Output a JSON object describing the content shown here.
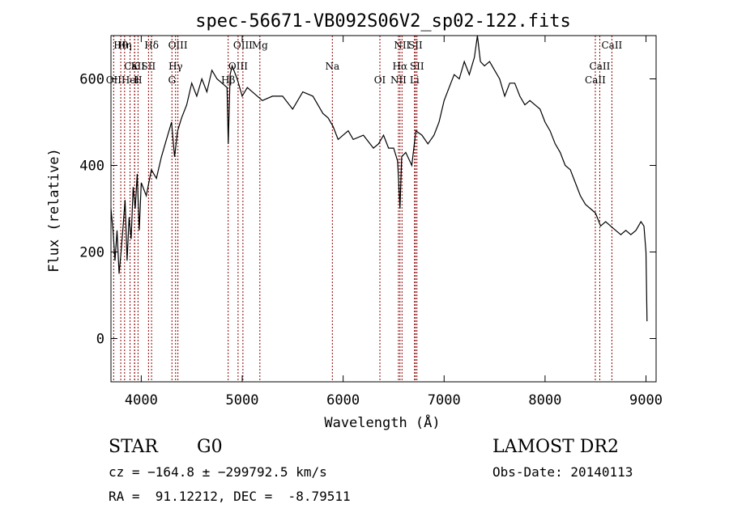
{
  "chart_data": {
    "type": "line",
    "title": "spec-56671-VB092S06V2_sp02-122.fits",
    "xlabel": "Wavelength (Å)",
    "ylabel": "Flux (relative)",
    "xlim": [
      3700,
      9100
    ],
    "ylim": [
      -100,
      700
    ],
    "xticks": [
      4000,
      5000,
      6000,
      7000,
      8000,
      9000
    ],
    "yticks": [
      0,
      200,
      400,
      600
    ],
    "grid": false,
    "line_color": "#000000",
    "marker_color": "#8b0000",
    "series": [
      {
        "x": [
          3700,
          3720,
          3740,
          3760,
          3780,
          3800,
          3820,
          3840,
          3860,
          3880,
          3900,
          3920,
          3940,
          3960,
          3980,
          4000,
          4050,
          4100,
          4150,
          4200,
          4250,
          4300,
          4330,
          4360,
          4400,
          4450,
          4500,
          4550,
          4600,
          4650,
          4700,
          4750,
          4800,
          4850,
          4862,
          4880,
          4900,
          4950,
          5000,
          5050,
          5100,
          5150,
          5200,
          5300,
          5400,
          5500,
          5600,
          5700,
          5800,
          5850,
          5900,
          5950,
          6000,
          6050,
          6100,
          6200,
          6300,
          6350,
          6400,
          6450,
          6500,
          6540,
          6563,
          6580,
          6620,
          6680,
          6720,
          6780,
          6840,
          6900,
          6950,
          7000,
          7050,
          7100,
          7150,
          7200,
          7250,
          7300,
          7330,
          7360,
          7400,
          7450,
          7500,
          7550,
          7600,
          7650,
          7700,
          7750,
          7800,
          7850,
          7900,
          7950,
          8000,
          8050,
          8100,
          8150,
          8200,
          8250,
          8300,
          8350,
          8400,
          8450,
          8500,
          8550,
          8600,
          8650,
          8700,
          8750,
          8800,
          8850,
          8900,
          8950,
          8980,
          9000,
          9010
        ],
        "y": [
          300,
          250,
          180,
          250,
          150,
          200,
          260,
          320,
          180,
          280,
          230,
          350,
          300,
          380,
          250,
          360,
          330,
          390,
          370,
          420,
          460,
          500,
          420,
          480,
          510,
          540,
          590,
          560,
          600,
          570,
          620,
          600,
          590,
          580,
          450,
          610,
          630,
          600,
          560,
          580,
          570,
          560,
          550,
          560,
          560,
          530,
          570,
          560,
          520,
          510,
          490,
          460,
          470,
          480,
          460,
          470,
          440,
          450,
          470,
          440,
          440,
          410,
          300,
          420,
          430,
          400,
          480,
          470,
          450,
          470,
          500,
          550,
          580,
          610,
          600,
          640,
          610,
          650,
          700,
          640,
          630,
          640,
          620,
          600,
          560,
          590,
          590,
          560,
          540,
          550,
          540,
          530,
          500,
          480,
          450,
          430,
          400,
          390,
          360,
          330,
          310,
          300,
          290,
          260,
          270,
          260,
          250,
          240,
          250,
          240,
          250,
          270,
          260,
          200,
          40
        ]
      }
    ],
    "lines": [
      {
        "name": "Hθ",
        "x": 3797
      },
      {
        "name": "CaII",
        "x": 3934
      },
      {
        "name": "Hel",
        "x": 3889
      },
      {
        "name": "Hη",
        "x": 3835
      },
      {
        "name": "K",
        "x": 3934
      },
      {
        "name": "H",
        "x": 3968
      },
      {
        "name": "Hδ",
        "x": 4102
      },
      {
        "name": "SII",
        "x": 4072
      },
      {
        "name": "OII",
        "x": 3727
      },
      {
        "name": "OIII",
        "x": 4363
      },
      {
        "name": "Hγ",
        "x": 4340
      },
      {
        "name": "G",
        "x": 4304
      },
      {
        "name": "OIII",
        "x": 5007
      },
      {
        "name": "OIII",
        "x": 4959
      },
      {
        "name": "Hβ",
        "x": 4861
      },
      {
        "name": "Mg",
        "x": 5175
      },
      {
        "name": "Na",
        "x": 5893
      },
      {
        "name": "OI",
        "x": 6364
      },
      {
        "name": "NII",
        "x": 6583
      },
      {
        "name": "Hα",
        "x": 6563
      },
      {
        "name": "NII",
        "x": 6548
      },
      {
        "name": "SII",
        "x": 6716
      },
      {
        "name": "SII",
        "x": 6731
      },
      {
        "name": "Li",
        "x": 6707
      },
      {
        "name": "CaII",
        "x": 8662
      },
      {
        "name": "CaII",
        "x": 8542
      },
      {
        "name": "CaII",
        "x": 8498
      }
    ]
  },
  "info": {
    "class_label": "STAR",
    "subclass": "G0",
    "survey": "LAMOST DR2",
    "cz": "cz = −164.8 ± −299792.5 km/s",
    "obs_date": "Obs-Date: 20140113",
    "radec": "RA =  91.12212, DEC =  -8.79511"
  }
}
